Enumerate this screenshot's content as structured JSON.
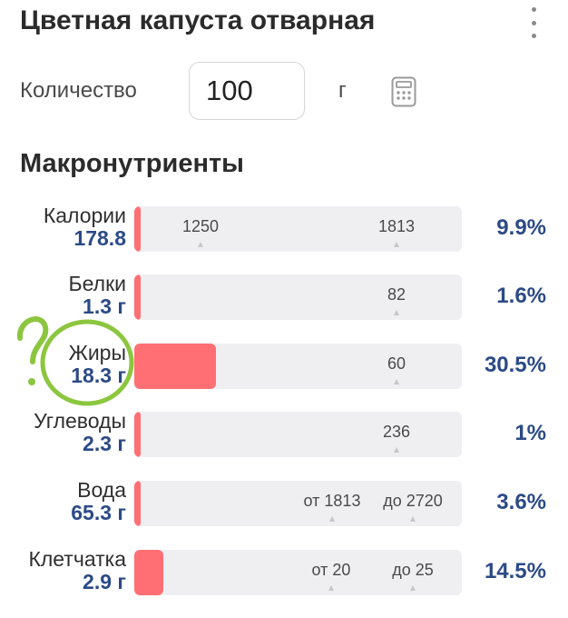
{
  "header": {
    "title": "Цветная капуста отварная",
    "menu_icon": "more-vertical-icon"
  },
  "quantity": {
    "label": "Количество",
    "value": "100",
    "unit": "г",
    "calculator_icon": "calculator-icon"
  },
  "macros": {
    "title": "Макронутриенты",
    "bar_color": "#ff6f73",
    "bar_bg_color": "#efeff2",
    "value_color": "#2b4a86",
    "items": [
      {
        "name": "Калории",
        "value": "178.8",
        "percent": "9.9%",
        "fill_percent": 2,
        "ticks": [
          "1250",
          "1813"
        ]
      },
      {
        "name": "Белки",
        "value": "1.3 г",
        "percent": "1.6%",
        "fill_percent": 1,
        "ticks": [
          "82"
        ]
      },
      {
        "name": "Жиры",
        "value": "18.3 г",
        "percent": "30.5%",
        "fill_percent": 25,
        "ticks": [
          "60"
        ]
      },
      {
        "name": "Углеводы",
        "value": "2.3 г",
        "percent": "1%",
        "fill_percent": 1,
        "ticks": [
          "236"
        ]
      },
      {
        "name": "Вода",
        "value": "65.3 г",
        "percent": "3.6%",
        "fill_percent": 2,
        "ticks": [
          "от 1813",
          "до 2720"
        ]
      },
      {
        "name": "Клетчатка",
        "value": "2.9 г",
        "percent": "14.5%",
        "fill_percent": 9,
        "ticks": [
          "от 20",
          "до 25"
        ]
      }
    ]
  },
  "annotation": {
    "mark": "?",
    "color": "#8cc63f"
  }
}
